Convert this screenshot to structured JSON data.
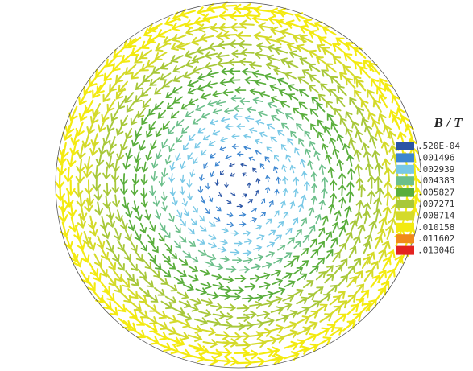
{
  "legend": {
    "title": "B / T",
    "entries": [
      {
        "label": ".520E-04",
        "color": "#2a55a5"
      },
      {
        "label": ".001496",
        "color": "#3d86d0"
      },
      {
        "label": ".002939",
        "color": "#78c8e6"
      },
      {
        "label": ".004383",
        "color": "#6cbf8a"
      },
      {
        "label": ".005827",
        "color": "#5aae3c"
      },
      {
        "label": ".007271",
        "color": "#a8c83a"
      },
      {
        "label": ".008714",
        "color": "#d4da2a"
      },
      {
        "label": ".010158",
        "color": "#f3ea10"
      },
      {
        "label": ".011602",
        "color": "#f08a1a"
      },
      {
        "label": ".013046",
        "color": "#e42320"
      }
    ]
  }
}
